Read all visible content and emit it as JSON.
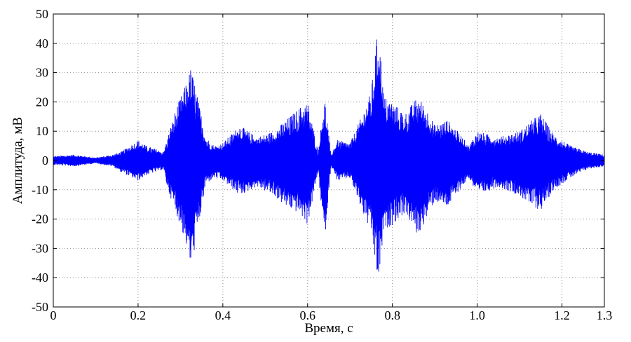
{
  "chart_data": {
    "type": "line",
    "title": "",
    "xlabel": "Время, с",
    "ylabel": "Амплитуда, мВ",
    "xlim": [
      0,
      1.3
    ],
    "ylim": [
      -50,
      50
    ],
    "x_ticks": [
      0,
      0.2,
      0.4,
      0.6,
      0.8,
      1.0,
      1.2,
      1.3
    ],
    "x_tick_labels": [
      "0",
      "0.2",
      "0.4",
      "0.6",
      "0.8",
      "1.0",
      "1.2",
      "1.3"
    ],
    "y_ticks": [
      -50,
      -40,
      -30,
      -20,
      -10,
      0,
      10,
      20,
      30,
      40,
      50
    ],
    "y_tick_labels": [
      "-50",
      "-40",
      "-30",
      "-20",
      "-10",
      "0",
      "10",
      "20",
      "30",
      "40",
      "50"
    ],
    "grid": true,
    "legend": "none",
    "series": [
      {
        "color": "#0000ff",
        "envelope": {
          "x": [
            0.0,
            0.05,
            0.1,
            0.14,
            0.16,
            0.2,
            0.22,
            0.26,
            0.27,
            0.29,
            0.31,
            0.325,
            0.34,
            0.36,
            0.38,
            0.4,
            0.44,
            0.48,
            0.52,
            0.55,
            0.58,
            0.6,
            0.625,
            0.64,
            0.655,
            0.67,
            0.7,
            0.73,
            0.75,
            0.767,
            0.78,
            0.8,
            0.83,
            0.86,
            0.88,
            0.9,
            0.93,
            0.96,
            0.98,
            1.0,
            1.05,
            1.1,
            1.13,
            1.15,
            1.18,
            1.22,
            1.26,
            1.3
          ],
          "upper": [
            1.5,
            2,
            1,
            2,
            3,
            7,
            5,
            3,
            8,
            18,
            25,
            32,
            22,
            8,
            5,
            6,
            12,
            8,
            10,
            14,
            18,
            20,
            3,
            22,
            2,
            7,
            6,
            16,
            24,
            47,
            22,
            20,
            16,
            22,
            18,
            12,
            14,
            9,
            5,
            10,
            8,
            10,
            14,
            16,
            9,
            5,
            3,
            2
          ],
          "lower": [
            -1.5,
            -2,
            -1,
            -2,
            -4,
            -7,
            -5,
            -3,
            -10,
            -18,
            -27,
            -37,
            -25,
            -8,
            -6,
            -7,
            -12,
            -9,
            -12,
            -16,
            -18,
            -22,
            -4,
            -28,
            -2,
            -7,
            -6,
            -18,
            -25,
            -43,
            -24,
            -22,
            -18,
            -26,
            -20,
            -14,
            -16,
            -10,
            -6,
            -12,
            -9,
            -12,
            -16,
            -17,
            -10,
            -6,
            -3,
            -2
          ]
        }
      }
    ]
  }
}
